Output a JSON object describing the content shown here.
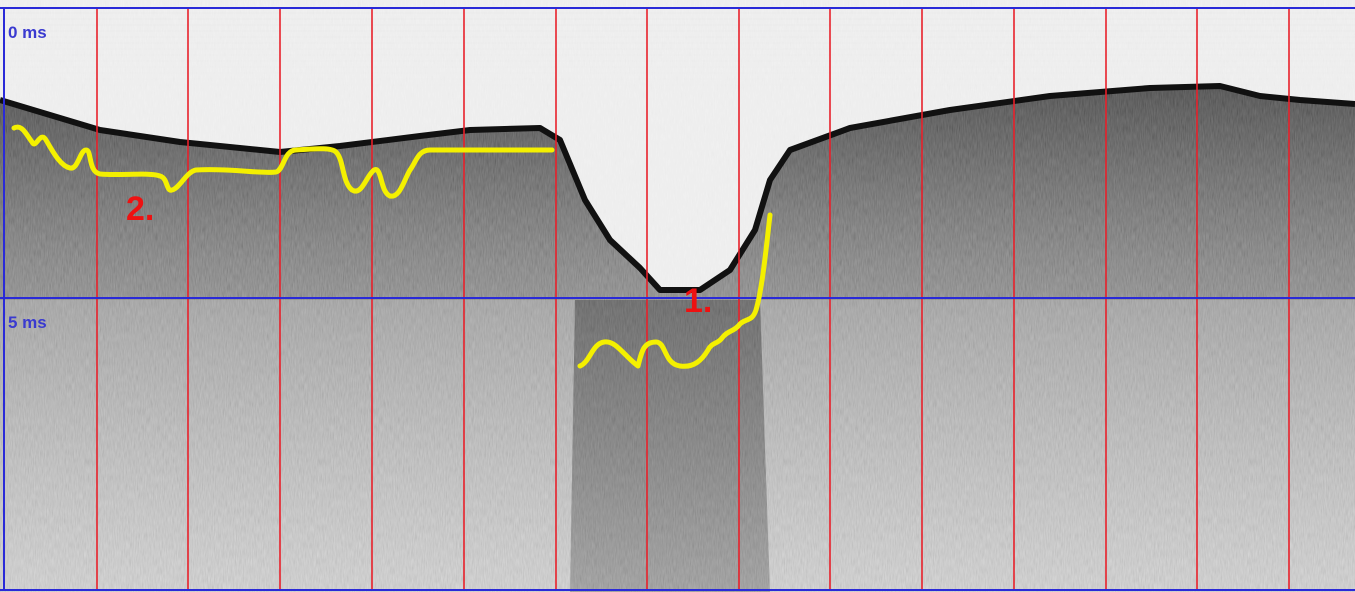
{
  "profile": {
    "time_labels": [
      "0 ms",
      "5 ms"
    ],
    "markers": [
      "1.",
      "2."
    ]
  },
  "colors": {
    "grid_vertical": "#e8202a",
    "grid_horizontal": "#2a2ad8",
    "tracing": "#f4f000",
    "marker_text": "#ee1111",
    "time_text": "#3a3ad0"
  }
}
